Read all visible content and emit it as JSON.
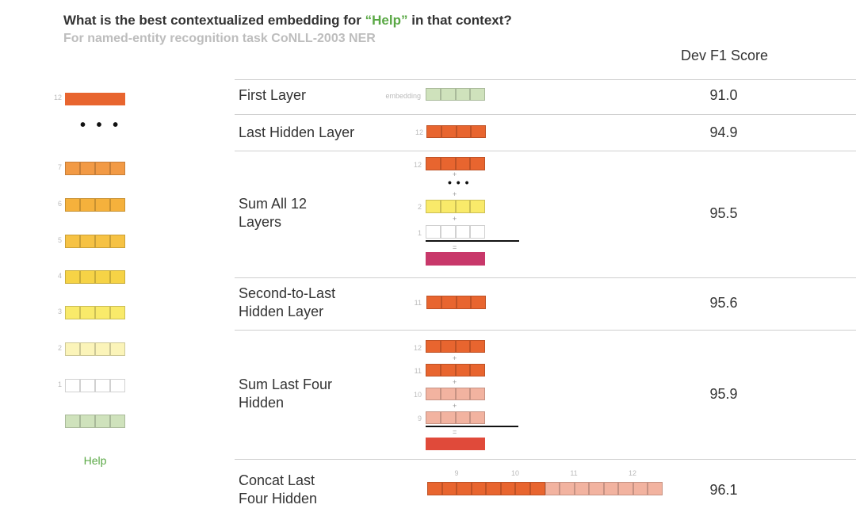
{
  "title": {
    "prefix": "What is the best contextualized embedding for ",
    "highlight": "“Help”",
    "suffix": " in that context?"
  },
  "subtitle": "For named-entity recognition task CoNLL-2003 NER",
  "score_header": "Dev F1 Score",
  "colors": {
    "l12": "#e8652f",
    "l7": "#f29a45",
    "l6": "#f5b13c",
    "l5": "#f6c244",
    "l4": "#f6d346",
    "l3": "#f9ea6a",
    "l2": "#fbf4b9",
    "l1": "#ffffff",
    "embed": "#cfe2bc",
    "sum": "#c8386a",
    "sum4": "#e04a3a",
    "salmon": "#f2b3a0",
    "accent_green": "#5aa845"
  },
  "left_stack": {
    "top_label": "12",
    "dots": "• • •",
    "layers": [
      {
        "label": "7",
        "color": "l7"
      },
      {
        "label": "6",
        "color": "l6"
      },
      {
        "label": "5",
        "color": "l5"
      },
      {
        "label": "4",
        "color": "l4"
      },
      {
        "label": "3",
        "color": "l3"
      },
      {
        "label": "2",
        "color": "l2"
      },
      {
        "label": "1",
        "color": "l1"
      }
    ],
    "word": "Help"
  },
  "rows": [
    {
      "label": "First Layer",
      "score": "91.0",
      "tag": "embedding"
    },
    {
      "label": "Last Hidden Layer",
      "score": "94.9",
      "tag": "12"
    },
    {
      "label": "Sum All 12\nLayers",
      "score": "95.5",
      "tags": [
        "12",
        "2",
        "1"
      ],
      "plus": "+",
      "equals": "="
    },
    {
      "label": "Second-to-Last\nHidden Layer",
      "score": "95.6",
      "tag": "11"
    },
    {
      "label": "Sum Last Four\nHidden",
      "score": "95.9",
      "tags": [
        "12",
        "11",
        "10",
        "9"
      ],
      "plus": "+",
      "equals": "="
    },
    {
      "label": "Concat Last\nFour Hidden",
      "score": "96.1",
      "tags": [
        "9",
        "10",
        "11",
        "12"
      ]
    }
  ]
}
